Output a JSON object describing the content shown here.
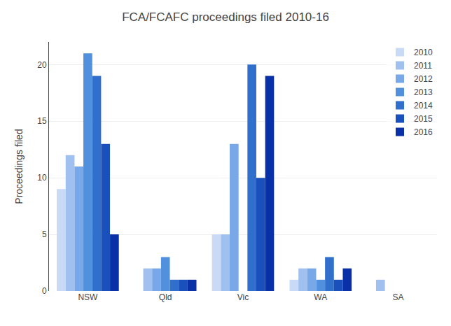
{
  "chart_data": {
    "type": "bar",
    "title": "FCA/FCAFC proceedings filed 2010-16",
    "ylabel": "Proceedings filed",
    "categories": [
      "NSW",
      "Qld",
      "Vic",
      "WA",
      "SA"
    ],
    "series": [
      {
        "name": "2010",
        "color": "#c8daf5",
        "values": [
          9,
          0,
          5,
          1,
          0
        ]
      },
      {
        "name": "2011",
        "color": "#a0c0f0",
        "values": [
          12,
          2,
          5,
          2,
          1
        ]
      },
      {
        "name": "2012",
        "color": "#78a8e8",
        "values": [
          11,
          2,
          13,
          2,
          0
        ]
      },
      {
        "name": "2013",
        "color": "#5090dc",
        "values": [
          21,
          3,
          0,
          1,
          0
        ]
      },
      {
        "name": "2014",
        "color": "#3070cc",
        "values": [
          19,
          1,
          20,
          3,
          0
        ]
      },
      {
        "name": "2015",
        "color": "#1a50bb",
        "values": [
          13,
          1,
          10,
          1,
          0
        ]
      },
      {
        "name": "2016",
        "color": "#0a30a8",
        "values": [
          5,
          1,
          19,
          2,
          0
        ]
      }
    ],
    "ylim": [
      0,
      22
    ],
    "yticks": [
      0,
      5,
      10,
      15,
      20
    ],
    "grid": true,
    "legend": "upper right"
  }
}
